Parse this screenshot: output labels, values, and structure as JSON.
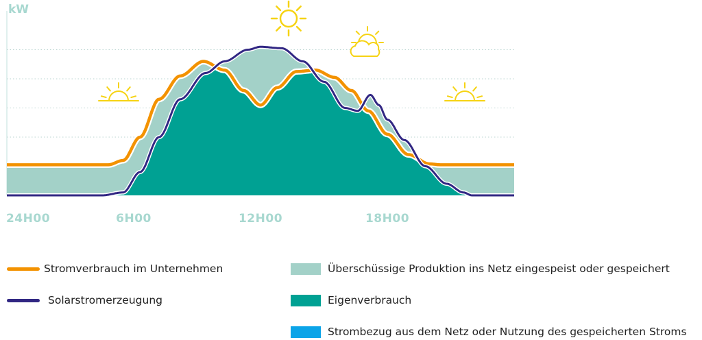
{
  "chart_data": {
    "type": "area",
    "ylabel": "kW",
    "x_ticks": [
      "24H00",
      "6H00",
      "12H00",
      "18H00"
    ],
    "x_tick_hours": [
      0,
      6,
      12,
      18
    ],
    "x_range": [
      0,
      24
    ],
    "y_range": [
      0,
      6
    ],
    "grid": true,
    "series": [
      {
        "name": "Stromverbrauch im Unternehmen",
        "kind": "line",
        "color": "#f39200",
        "points": [
          [
            0,
            1.05
          ],
          [
            4.8,
            1.05
          ],
          [
            5.5,
            1.2
          ],
          [
            6.3,
            2.0
          ],
          [
            7.2,
            3.3
          ],
          [
            8.2,
            4.1
          ],
          [
            9.3,
            4.6
          ],
          [
            10.3,
            4.3
          ],
          [
            11.2,
            3.6
          ],
          [
            12,
            3.1
          ],
          [
            12.8,
            3.7
          ],
          [
            13.7,
            4.25
          ],
          [
            14.6,
            4.3
          ],
          [
            15.5,
            4.05
          ],
          [
            16.3,
            3.6
          ],
          [
            17.1,
            2.9
          ],
          [
            18,
            2.1
          ],
          [
            19,
            1.4
          ],
          [
            20,
            1.08
          ],
          [
            20.5,
            1.05
          ],
          [
            24,
            1.05
          ]
        ]
      },
      {
        "name": "Solarstromerzeugung",
        "kind": "line",
        "color": "#312783",
        "points": [
          [
            0,
            0
          ],
          [
            4.5,
            0
          ],
          [
            5.5,
            0.1
          ],
          [
            6.3,
            0.8
          ],
          [
            7.2,
            2.0
          ],
          [
            8.2,
            3.3
          ],
          [
            9.4,
            4.2
          ],
          [
            10.3,
            4.6
          ],
          [
            11.4,
            5.0
          ],
          [
            12,
            5.1
          ],
          [
            13,
            5.05
          ],
          [
            14,
            4.6
          ],
          [
            15,
            3.9
          ],
          [
            16,
            3.0
          ],
          [
            16.6,
            2.9
          ],
          [
            17.2,
            3.45
          ],
          [
            17.6,
            3.1
          ],
          [
            18,
            2.6
          ],
          [
            18.8,
            1.9
          ],
          [
            19.8,
            1.0
          ],
          [
            20.8,
            0.4
          ],
          [
            21.6,
            0.1
          ],
          [
            22,
            0
          ],
          [
            24,
            0
          ]
        ]
      },
      {
        "name": "Überschüssige Produktion ins Netz eingespeist oder gespeichert",
        "kind": "area",
        "color": "#a3d1c8"
      },
      {
        "name": "Eigenverbrauch",
        "kind": "area",
        "color": "#00a193"
      },
      {
        "name": "Strombezug aus dem Netz oder Nutzung des gespeicherten Stroms",
        "kind": "area",
        "color": "#0ba4e8"
      }
    ],
    "icons": [
      "sunrise-icon",
      "sun-icon",
      "sun-behind-cloud-icon",
      "sunset-icon"
    ]
  },
  "legend": {
    "consumption": "Stromverbrauch im Unternehmen",
    "solar": "Solarstromerzeugung",
    "surplus": "Überschüssige Produktion ins Netz eingespeist oder gespeichert",
    "self": "Eigenverbrauch",
    "grid": "Strombezug aus dem Netz oder Nutzung des gespeicherten Stroms"
  },
  "colors": {
    "consumption": "#f39200",
    "solar": "#312783",
    "surplus": "#a3d1c8",
    "self": "#00a193",
    "grid": "#0ba4e8",
    "axis_text": "#a8d8d0",
    "icon": "#f6d313"
  }
}
